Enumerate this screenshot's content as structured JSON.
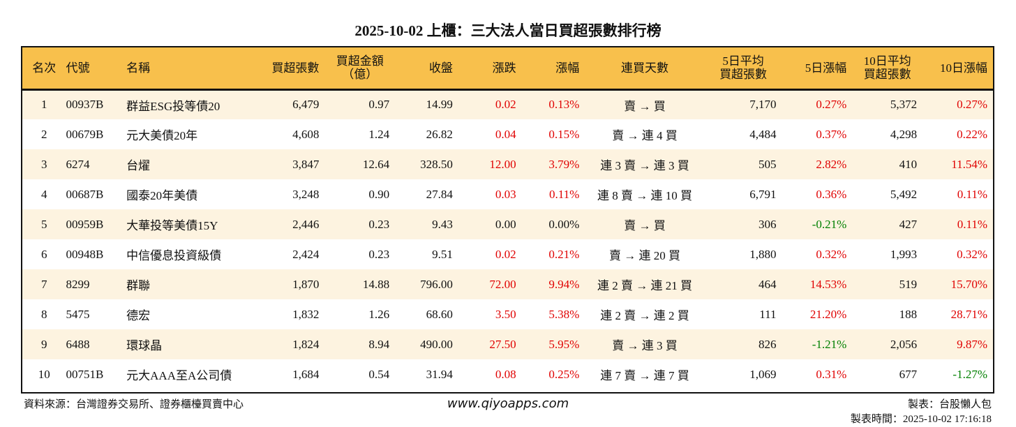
{
  "title": "2025-10-02 上櫃：三大法人當日買超張數排行榜",
  "headers": [
    "名次",
    "代號",
    "名稱",
    "買超張數",
    "買超金額\n（億）",
    "收盤",
    "漲跌",
    "漲幅",
    "連買天數",
    "5日平均\n買超張數",
    "5日漲幅",
    "10日平均\n買超張數",
    "10日漲幅"
  ],
  "rows": [
    [
      "1",
      "00937B",
      "群益ESG投等債20",
      "6,479",
      "0.97",
      "14.99",
      "0.02",
      "0.13%",
      "賣 → 買",
      "7,170",
      "0.27%",
      "5,372",
      "0.27%"
    ],
    [
      "2",
      "00679B",
      "元大美債20年",
      "4,608",
      "1.24",
      "26.82",
      "0.04",
      "0.15%",
      "賣 → 連 4 買",
      "4,484",
      "0.37%",
      "4,298",
      "0.22%"
    ],
    [
      "3",
      "6274",
      "台燿",
      "3,847",
      "12.64",
      "328.50",
      "12.00",
      "3.79%",
      "連 3 賣 → 連 3 買",
      "505",
      "2.82%",
      "410",
      "11.54%"
    ],
    [
      "4",
      "00687B",
      "國泰20年美債",
      "3,248",
      "0.90",
      "27.84",
      "0.03",
      "0.11%",
      "連 8 賣 → 連 10 買",
      "6,791",
      "0.36%",
      "5,492",
      "0.11%"
    ],
    [
      "5",
      "00959B",
      "大華投等美債15Y",
      "2,446",
      "0.23",
      "9.43",
      "0.00",
      "0.00%",
      "賣 → 買",
      "306",
      "-0.21%",
      "427",
      "0.11%"
    ],
    [
      "6",
      "00948B",
      "中信優息投資級債",
      "2,424",
      "0.23",
      "9.51",
      "0.02",
      "0.21%",
      "賣 → 連 20 買",
      "1,880",
      "0.32%",
      "1,993",
      "0.32%"
    ],
    [
      "7",
      "8299",
      "群聯",
      "1,870",
      "14.88",
      "796.00",
      "72.00",
      "9.94%",
      "連 2 賣 → 連 21 買",
      "464",
      "14.53%",
      "519",
      "15.70%"
    ],
    [
      "8",
      "5475",
      "德宏",
      "1,832",
      "1.26",
      "68.60",
      "3.50",
      "5.38%",
      "連 2 賣 → 連 2 買",
      "111",
      "21.20%",
      "188",
      "28.71%"
    ],
    [
      "9",
      "6488",
      "環球晶",
      "1,824",
      "8.94",
      "490.00",
      "27.50",
      "5.95%",
      "賣 → 連 3 買",
      "826",
      "-1.21%",
      "2,056",
      "9.87%"
    ],
    [
      "10",
      "00751B",
      "元大AAA至A公司債",
      "1,684",
      "0.54",
      "31.94",
      "0.08",
      "0.25%",
      "連 7 賣 → 連 7 買",
      "1,069",
      "0.31%",
      "677",
      "-1.27%"
    ]
  ],
  "footer": {
    "source": "資料來源：台灣證券交易所、證券櫃檯買賣中心",
    "site": "www.qiyoapps.com",
    "maker": "製表：台股懶人包",
    "time": "製表時間：2025-10-02 17:16:18"
  },
  "colors": {
    "header_bg": "#f8c04c",
    "row_alt": "#fdf3e0",
    "up": "#e00000",
    "down": "#008000"
  }
}
